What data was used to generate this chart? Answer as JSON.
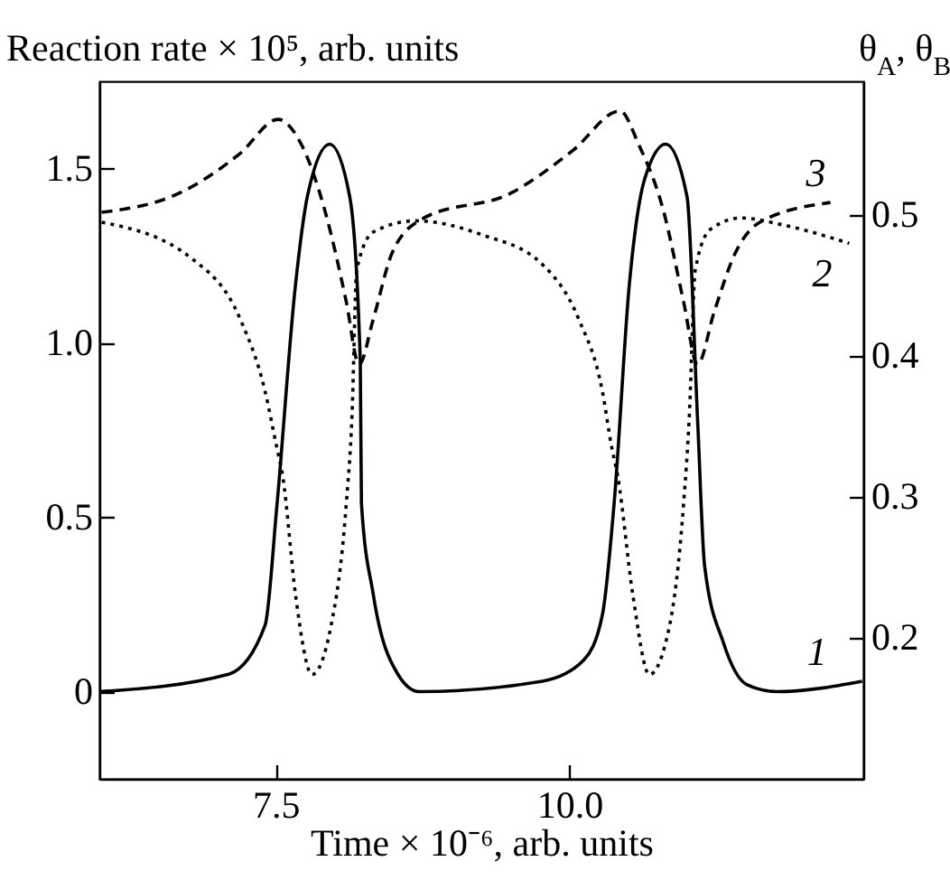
{
  "chart_data": {
    "type": "line",
    "xlabel": "Time × 10⁻⁶, arb. units",
    "ylabel": "Reaction rate × 10⁵, arb. units",
    "y2label": "θ$_{A}$, θ$_{B}$",
    "xlim": [
      6,
      12.5
    ],
    "xticks": [
      7.5,
      {
        "value": 10,
        "label": "10.0"
      }
    ],
    "ylim": [
      -0.25,
      1.75
    ],
    "yticks": [
      0,
      0.5,
      {
        "value": 1,
        "label": "1.0"
      },
      1.5
    ],
    "y2lim": [
      0.1,
      0.595
    ],
    "y2ticks": [
      0.2,
      0.3,
      0.4,
      0.5
    ],
    "grid": false,
    "marker": "none",
    "series": [
      {
        "name": "1",
        "color": "#000000",
        "line_style": "solid",
        "x": [
          6.0,
          7.1,
          7.41,
          7.51,
          7.67,
          7.77,
          7.96,
          8.13,
          8.22,
          8.23,
          8.33,
          8.54,
          8.72,
          9.77,
          10.12,
          10.28,
          10.38,
          10.51,
          10.64,
          10.82,
          11.0,
          11.09,
          11.15,
          11.31,
          11.51,
          11.77,
          12.49
        ],
        "values": [
          0.0,
          0.05,
          0.19,
          0.53,
          1.17,
          1.42,
          1.57,
          1.42,
          0.95,
          0.54,
          0.28,
          0.05,
          0.0,
          0.03,
          0.09,
          0.22,
          0.54,
          1.17,
          1.47,
          1.57,
          1.42,
          0.78,
          0.36,
          0.14,
          0.02,
          0.0,
          0.03
        ]
      },
      {
        "name": "2",
        "color": "#000000",
        "line_style": "dotted",
        "axis": "y2",
        "x": [
          6.02,
          6.79,
          7.2,
          7.41,
          7.51,
          7.56,
          7.67,
          7.81,
          7.97,
          8.1,
          8.15,
          8.19,
          8.33,
          8.69,
          9.26,
          9.77,
          10.08,
          10.28,
          10.36,
          10.41,
          10.54,
          10.68,
          10.85,
          10.97,
          11.02,
          11.07,
          11.2,
          11.46,
          11.82,
          12.38
        ],
        "values": [
          0.495,
          0.469,
          0.426,
          0.375,
          0.335,
          0.315,
          0.23,
          0.174,
          0.208,
          0.294,
          0.358,
          0.461,
          0.488,
          0.496,
          0.486,
          0.465,
          0.426,
          0.375,
          0.335,
          0.315,
          0.23,
          0.174,
          0.208,
          0.294,
          0.358,
          0.461,
          0.49,
          0.498,
          0.493,
          0.48
        ]
      },
      {
        "name": "3",
        "color": "#000000",
        "line_style": "dashed",
        "axis": "y2",
        "x": [
          6.02,
          6.69,
          7.2,
          7.52,
          7.72,
          7.92,
          8.1,
          8.21,
          8.33,
          8.49,
          8.74,
          9.51,
          10.03,
          10.43,
          10.59,
          10.8,
          10.97,
          11.09,
          11.23,
          11.41,
          11.62,
          12.22
        ],
        "values": [
          0.502,
          0.516,
          0.544,
          0.568,
          0.55,
          0.503,
          0.439,
          0.394,
          0.426,
          0.473,
          0.497,
          0.516,
          0.546,
          0.574,
          0.55,
          0.503,
          0.439,
          0.394,
          0.431,
          0.473,
          0.495,
          0.509
        ]
      }
    ]
  }
}
